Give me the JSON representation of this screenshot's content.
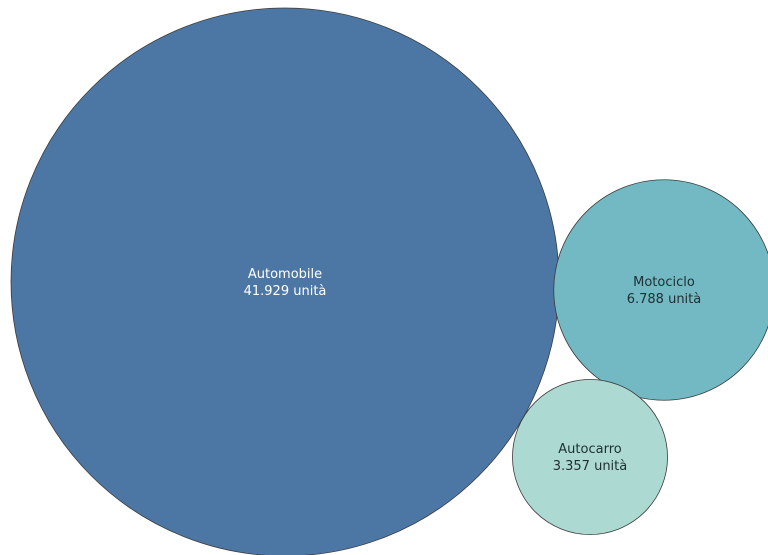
{
  "chart_data": {
    "type": "bubble",
    "unit_label": "unità",
    "bubbles": [
      {
        "name": "Automobile",
        "value": 41929,
        "value_text": "41.929",
        "color": "#4c77a5",
        "text_color": "#ffffff"
      },
      {
        "name": "Motociclo",
        "value": 6788,
        "value_text": "6.788",
        "color": "#72b9c4",
        "text_color": "#1f2f33"
      },
      {
        "name": "Autocarro",
        "value": 3357,
        "value_text": "3.357",
        "color": "#acdad2",
        "text_color": "#1f2f33"
      }
    ]
  }
}
